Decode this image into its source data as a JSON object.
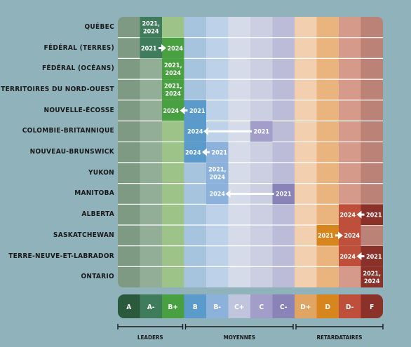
{
  "chart_data": {
    "type": "table",
    "title": "",
    "grades": [
      "A",
      "A-",
      "B+",
      "B",
      "B-",
      "C+",
      "C",
      "C-",
      "D+",
      "D",
      "D-",
      "F"
    ],
    "groups": [
      {
        "label": "LEADERS",
        "from": 0,
        "to": 2
      },
      {
        "label": "MOYENNES",
        "from": 3,
        "to": 7
      },
      {
        "label": "RETARDATAIRES",
        "from": 8,
        "to": 11
      }
    ],
    "years": [
      "2021",
      "2024"
    ],
    "rows": [
      {
        "name": "QUÉBEC",
        "g2021": "A-",
        "g2024": "A-"
      },
      {
        "name": "FÉDÉRAL (TERRES)",
        "g2021": "A-",
        "g2024": "B+"
      },
      {
        "name": "FÉDÉRAL (OCÉANS)",
        "g2021": "B+",
        "g2024": "B+"
      },
      {
        "name": "TERRITOIRES DU NORD-OUEST",
        "g2021": "B+",
        "g2024": "B+"
      },
      {
        "name": "NOUVELLE-ÉCOSSE",
        "g2021": "B",
        "g2024": "B+"
      },
      {
        "name": "COLOMBIE-BRITANNIQUE",
        "g2021": "C",
        "g2024": "B"
      },
      {
        "name": "NOUVEAU-BRUNSWICK",
        "g2021": "B-",
        "g2024": "B"
      },
      {
        "name": "YUKON",
        "g2021": "B-",
        "g2024": "B-"
      },
      {
        "name": "MANITOBA",
        "g2021": "C-",
        "g2024": "B-"
      },
      {
        "name": "ALBERTA",
        "g2021": "F",
        "g2024": "D-"
      },
      {
        "name": "SASKATCHEWAN",
        "g2021": "D",
        "g2024": "D-"
      },
      {
        "name": "TERRE-NEUVE-ET-LABRADOR",
        "g2021": "F",
        "g2024": "D-"
      },
      {
        "name": "ONTARIO",
        "g2021": "F",
        "g2024": "F"
      }
    ]
  },
  "colors": {
    "light": [
      "#7e9a82",
      "#93ae97",
      "#9dc389",
      "#a6c4de",
      "#bdd2e9",
      "#d6dbe9",
      "#cccfe1",
      "#bcbbd8",
      "#f2cfae",
      "#e9b47e",
      "#d69a8a",
      "#bb8378"
    ],
    "dark": [
      "#2a5a3b",
      "#3f7c5b",
      "#49a040",
      "#5b9bcb",
      "#8cb2dc",
      "#bfc5dd",
      "#a39ec9",
      "#8983b8",
      "#e0a463",
      "#d7861e",
      "#bd4f3b",
      "#8a3129"
    ],
    "separator": "#ffffff",
    "background": "#8fb2bb"
  }
}
